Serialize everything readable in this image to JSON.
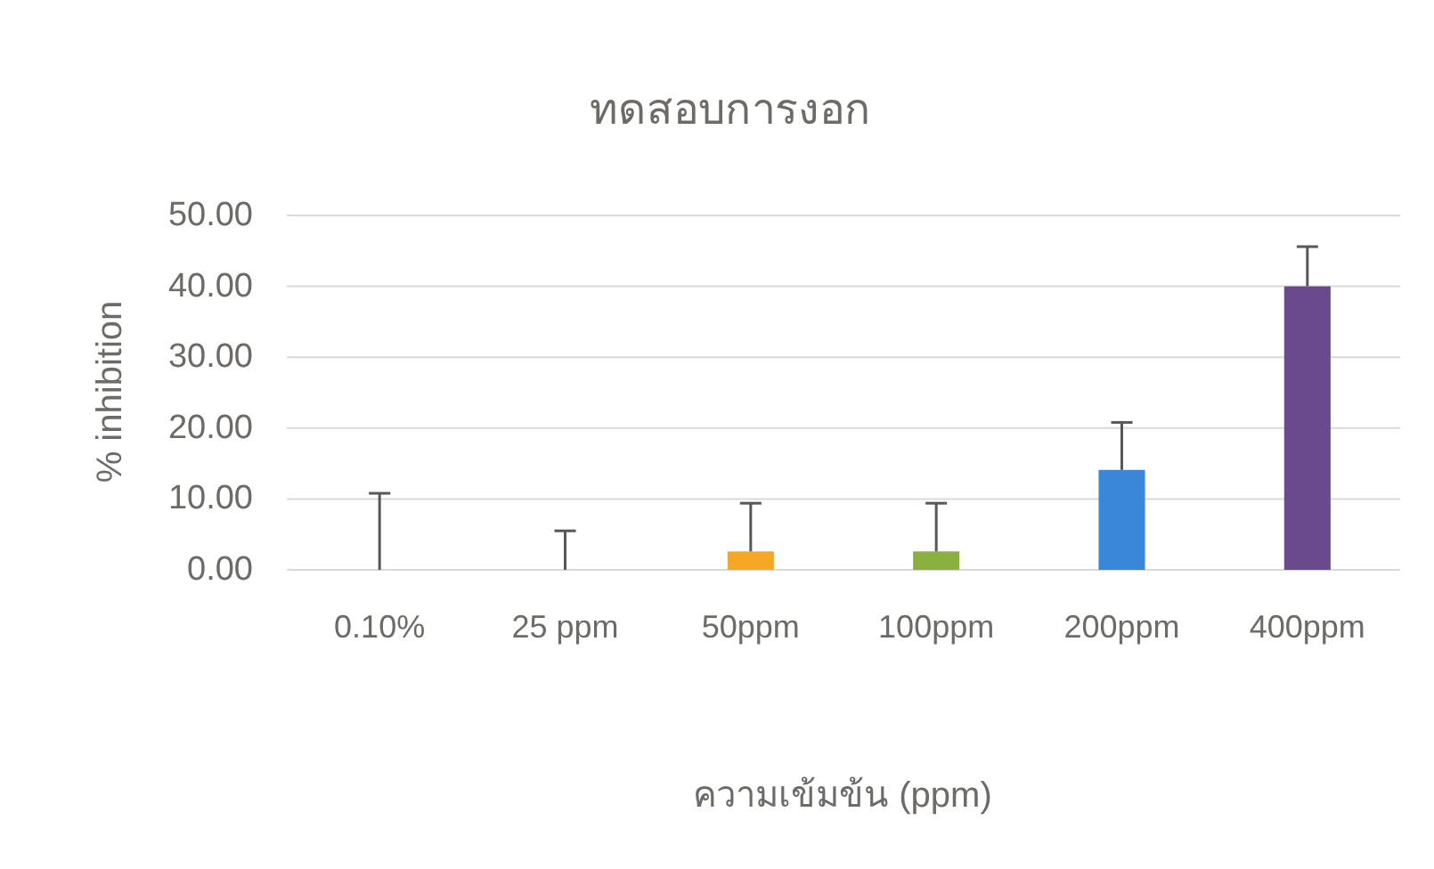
{
  "chart_data": {
    "type": "bar",
    "title": "ทดสอบการงอก",
    "xlabel": "ความเข้มข้น (ppm)",
    "ylabel": "% inhibition",
    "categories": [
      "0.10%",
      "25 ppm",
      "50ppm",
      "100ppm",
      "200ppm",
      "400ppm"
    ],
    "values": [
      0,
      0,
      2.6,
      2.6,
      14.1,
      40.0
    ],
    "errors": [
      [
        0,
        10.8
      ],
      [
        0,
        5.5
      ],
      [
        2.6,
        9.4
      ],
      [
        2.6,
        9.4
      ],
      [
        14.1,
        20.8
      ],
      [
        40.0,
        45.6
      ]
    ],
    "colors": [
      null,
      null,
      "#f5a623",
      "#8cb040",
      "#3a86d8",
      "#6a4a8c"
    ],
    "ylim": [
      0,
      50
    ],
    "yticks": [
      {
        "value": 0,
        "label": "0.00"
      },
      {
        "value": 10,
        "label": "10.00"
      },
      {
        "value": 20,
        "label": "20.00"
      },
      {
        "value": 30,
        "label": "30.00"
      },
      {
        "value": 40,
        "label": "40.00"
      },
      {
        "value": 50,
        "label": "50.00"
      }
    ],
    "grid": "y"
  }
}
